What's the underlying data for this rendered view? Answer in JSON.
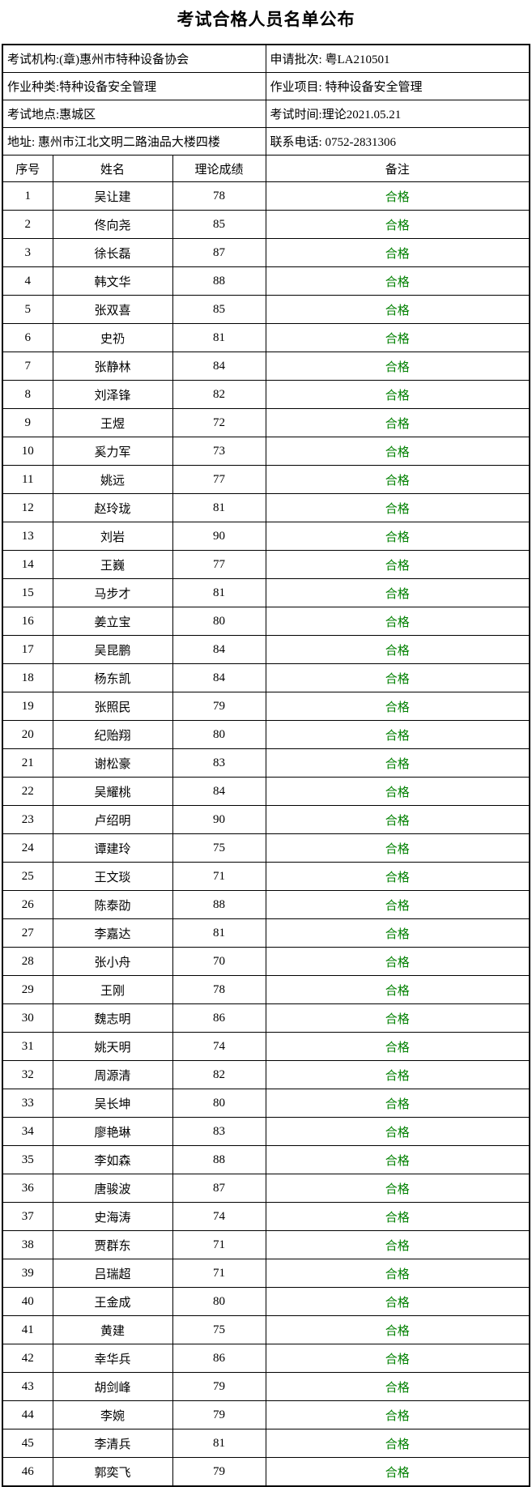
{
  "title": "考试合格人员名单公布",
  "info_rows": [
    {
      "left": "考试机构:(章)惠州市特种设备协会",
      "right": "申请批次: 粤LA210501"
    },
    {
      "left": "作业种类:特种设备安全管理",
      "right": "作业项目: 特种设备安全管理"
    },
    {
      "left": "考试地点:惠城区",
      "right": "考试时间:理论2021.05.21"
    },
    {
      "left": "地址: 惠州市江北文明二路油品大楼四楼",
      "right": "联系电话: 0752-2831306"
    }
  ],
  "table": {
    "headers": [
      "序号",
      "姓名",
      "理论成绩",
      "备注"
    ],
    "rows": [
      {
        "no": "1",
        "name": "吴让建",
        "score": "78",
        "remark": "合格"
      },
      {
        "no": "2",
        "name": "佟向尧",
        "score": "85",
        "remark": "合格"
      },
      {
        "no": "3",
        "name": "徐长磊",
        "score": "87",
        "remark": "合格"
      },
      {
        "no": "4",
        "name": "韩文华",
        "score": "88",
        "remark": "合格"
      },
      {
        "no": "5",
        "name": "张双喜",
        "score": "85",
        "remark": "合格"
      },
      {
        "no": "6",
        "name": "史礽",
        "score": "81",
        "remark": "合格"
      },
      {
        "no": "7",
        "name": "张静林",
        "score": "84",
        "remark": "合格"
      },
      {
        "no": "8",
        "name": "刘泽锋",
        "score": "82",
        "remark": "合格"
      },
      {
        "no": "9",
        "name": "王煜",
        "score": "72",
        "remark": "合格"
      },
      {
        "no": "10",
        "name": "奚力军",
        "score": "73",
        "remark": "合格"
      },
      {
        "no": "11",
        "name": "姚远",
        "score": "77",
        "remark": "合格"
      },
      {
        "no": "12",
        "name": "赵玲珑",
        "score": "81",
        "remark": "合格"
      },
      {
        "no": "13",
        "name": "刘岩",
        "score": "90",
        "remark": "合格"
      },
      {
        "no": "14",
        "name": "王巍",
        "score": "77",
        "remark": "合格"
      },
      {
        "no": "15",
        "name": "马步才",
        "score": "81",
        "remark": "合格"
      },
      {
        "no": "16",
        "name": "姜立宝",
        "score": "80",
        "remark": "合格"
      },
      {
        "no": "17",
        "name": "吴昆鹏",
        "score": "84",
        "remark": "合格"
      },
      {
        "no": "18",
        "name": "杨东凯",
        "score": "84",
        "remark": "合格"
      },
      {
        "no": "19",
        "name": "张照民",
        "score": "79",
        "remark": "合格"
      },
      {
        "no": "20",
        "name": "纪贻翔",
        "score": "80",
        "remark": "合格"
      },
      {
        "no": "21",
        "name": "谢松豪",
        "score": "83",
        "remark": "合格"
      },
      {
        "no": "22",
        "name": "吴耀桃",
        "score": "84",
        "remark": "合格"
      },
      {
        "no": "23",
        "name": "卢绍明",
        "score": "90",
        "remark": "合格"
      },
      {
        "no": "24",
        "name": "谭建玲",
        "score": "75",
        "remark": "合格"
      },
      {
        "no": "25",
        "name": "王文琰",
        "score": "71",
        "remark": "合格"
      },
      {
        "no": "26",
        "name": "陈泰劭",
        "score": "88",
        "remark": "合格"
      },
      {
        "no": "27",
        "name": "李嘉达",
        "score": "81",
        "remark": "合格"
      },
      {
        "no": "28",
        "name": "张小舟",
        "score": "70",
        "remark": "合格"
      },
      {
        "no": "29",
        "name": "王刚",
        "score": "78",
        "remark": "合格"
      },
      {
        "no": "30",
        "name": "魏志明",
        "score": "86",
        "remark": "合格"
      },
      {
        "no": "31",
        "name": "姚天明",
        "score": "74",
        "remark": "合格"
      },
      {
        "no": "32",
        "name": "周源清",
        "score": "82",
        "remark": "合格"
      },
      {
        "no": "33",
        "name": "吴长坤",
        "score": "80",
        "remark": "合格"
      },
      {
        "no": "34",
        "name": "廖艳琳",
        "score": "83",
        "remark": "合格"
      },
      {
        "no": "35",
        "name": "李如森",
        "score": "88",
        "remark": "合格"
      },
      {
        "no": "36",
        "name": "唐骏波",
        "score": "87",
        "remark": "合格"
      },
      {
        "no": "37",
        "name": "史海涛",
        "score": "74",
        "remark": "合格"
      },
      {
        "no": "38",
        "name": "贾群东",
        "score": "71",
        "remark": "合格"
      },
      {
        "no": "39",
        "name": "吕瑞超",
        "score": "71",
        "remark": "合格"
      },
      {
        "no": "40",
        "name": "王金成",
        "score": "80",
        "remark": "合格"
      },
      {
        "no": "41",
        "name": "黄建",
        "score": "75",
        "remark": "合格"
      },
      {
        "no": "42",
        "name": "幸华兵",
        "score": "86",
        "remark": "合格"
      },
      {
        "no": "43",
        "name": "胡剑峰",
        "score": "79",
        "remark": "合格"
      },
      {
        "no": "44",
        "name": "李婉",
        "score": "79",
        "remark": "合格"
      },
      {
        "no": "45",
        "name": "李清兵",
        "score": "81",
        "remark": "合格"
      },
      {
        "no": "46",
        "name": "郭奕飞",
        "score": "79",
        "remark": "合格"
      }
    ]
  },
  "colors": {
    "pass_text": "#008000",
    "border": "#000000",
    "text": "#000000",
    "background": "#ffffff"
  }
}
